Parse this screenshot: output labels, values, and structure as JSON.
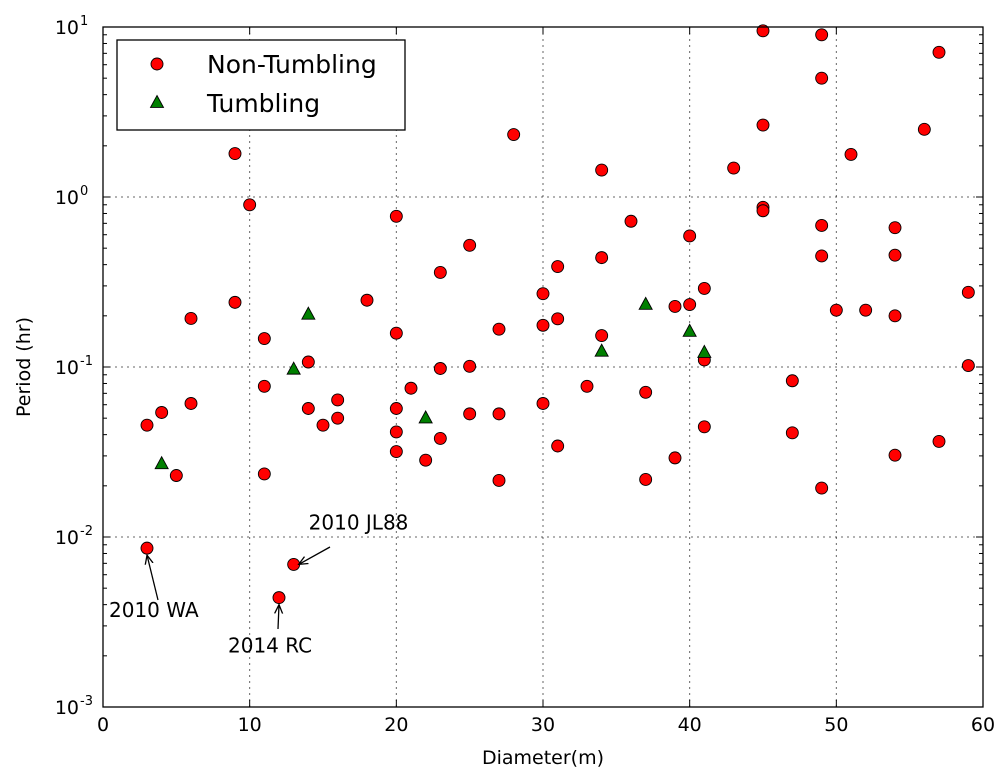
{
  "chart_data": {
    "type": "scatter",
    "xlabel": "Diameter(m)",
    "ylabel": "Period (hr)",
    "xlim": [
      0,
      60
    ],
    "ylim": [
      0.001,
      10
    ],
    "yscale": "log",
    "grid": true,
    "legend_position": "top-left",
    "x_ticks": [
      0,
      10,
      20,
      30,
      40,
      50,
      60
    ],
    "y_ticks": [
      {
        "value": 0.001,
        "base": "10",
        "exp": "-3"
      },
      {
        "value": 0.01,
        "base": "10",
        "exp": "-2"
      },
      {
        "value": 0.1,
        "base": "10",
        "exp": "-1"
      },
      {
        "value": 1,
        "base": "10",
        "exp": "0"
      },
      {
        "value": 10,
        "base": "10",
        "exp": "1"
      }
    ],
    "series": [
      {
        "name": "Non-Tumbling",
        "marker": "circle",
        "color": "#ff0000",
        "points": [
          [
            3,
            0.0455
          ],
          [
            3,
            0.0086
          ],
          [
            4,
            0.054
          ],
          [
            5,
            0.023
          ],
          [
            6,
            0.193
          ],
          [
            6,
            0.061
          ],
          [
            9,
            1.8
          ],
          [
            9,
            0.24
          ],
          [
            10,
            0.9
          ],
          [
            11,
            0.147
          ],
          [
            11,
            0.077
          ],
          [
            11,
            0.0235
          ],
          [
            12,
            0.0044
          ],
          [
            13,
            0.0069
          ],
          [
            14,
            0.107
          ],
          [
            14,
            0.057
          ],
          [
            15,
            0.0455
          ],
          [
            16,
            0.064
          ],
          [
            16,
            0.05
          ],
          [
            18,
            0.247
          ],
          [
            20,
            0.77
          ],
          [
            20,
            0.158
          ],
          [
            20,
            0.057
          ],
          [
            20,
            0.0415
          ],
          [
            20,
            0.0318
          ],
          [
            21,
            0.075
          ],
          [
            22,
            0.0283
          ],
          [
            23,
            0.36
          ],
          [
            23,
            0.098
          ],
          [
            23,
            0.038
          ],
          [
            25,
            0.52
          ],
          [
            25,
            0.101
          ],
          [
            25,
            0.053
          ],
          [
            27,
            0.167
          ],
          [
            27,
            0.053
          ],
          [
            27,
            0.0215
          ],
          [
            28,
            2.33
          ],
          [
            30,
            0.27
          ],
          [
            30,
            0.176
          ],
          [
            30,
            0.061
          ],
          [
            31,
            0.39
          ],
          [
            31,
            0.192
          ],
          [
            31,
            0.0343
          ],
          [
            33,
            0.077
          ],
          [
            34,
            1.44
          ],
          [
            34,
            0.44
          ],
          [
            34,
            0.153
          ],
          [
            36,
            0.72
          ],
          [
            37,
            0.071
          ],
          [
            37,
            0.0218
          ],
          [
            39,
            0.227
          ],
          [
            39,
            0.0292
          ],
          [
            40,
            0.59
          ],
          [
            40,
            0.233
          ],
          [
            41,
            0.29
          ],
          [
            41,
            0.11
          ],
          [
            41,
            0.0445
          ],
          [
            43,
            1.48
          ],
          [
            45,
            9.5
          ],
          [
            45,
            2.65
          ],
          [
            45,
            0.87
          ],
          [
            45,
            0.83
          ],
          [
            47,
            0.083
          ],
          [
            47,
            0.041
          ],
          [
            49,
            9.0
          ],
          [
            49,
            5.0
          ],
          [
            49,
            0.68
          ],
          [
            49,
            0.45
          ],
          [
            49,
            0.0194
          ],
          [
            50,
            0.216
          ],
          [
            51,
            1.78
          ],
          [
            52,
            0.216
          ],
          [
            54,
            0.66
          ],
          [
            54,
            0.455
          ],
          [
            54,
            0.2
          ],
          [
            54,
            0.0303
          ],
          [
            56,
            2.5
          ],
          [
            57,
            7.1
          ],
          [
            57,
            0.0365
          ],
          [
            59,
            0.275
          ],
          [
            59,
            0.102
          ]
        ]
      },
      {
        "name": "Tumbling",
        "marker": "triangle",
        "color": "#008000",
        "points": [
          [
            4,
            0.0268
          ],
          [
            13,
            0.0965
          ],
          [
            14,
            0.203
          ],
          [
            22,
            0.0498
          ],
          [
            34,
            0.123
          ],
          [
            37,
            0.232
          ],
          [
            40,
            0.161
          ],
          [
            41,
            0.121
          ]
        ]
      }
    ],
    "annotations": [
      {
        "text": "2010 WA",
        "point": [
          3,
          0.0086
        ]
      },
      {
        "text": "2014 RC",
        "point": [
          12,
          0.0044
        ]
      },
      {
        "text": "2010 JL88",
        "point": [
          13,
          0.0069
        ]
      }
    ]
  }
}
